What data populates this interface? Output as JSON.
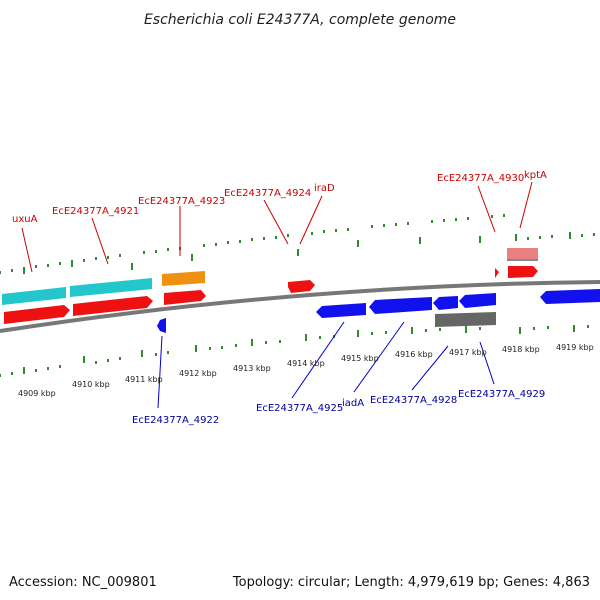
{
  "title": "Escherichia coli E24377A, complete genome",
  "footer": {
    "accession": "Accession: NC_009801",
    "summary": "Topology: circular; Length: 4,979,619 bp; Genes: 4,863"
  },
  "colors": {
    "forward_cds": "#ee1111",
    "reverse_cds": "#1111ee",
    "cyan_feature": "#22c7cc",
    "orange_feature": "#f09010",
    "pink_feature": "#e88080",
    "gray_feature": "#666666",
    "tick": "#2e8b2e",
    "backbone": "#777777"
  },
  "scale": {
    "unit": "kbp",
    "labels": [
      "4909 kbp",
      "4910 kbp",
      "4911 kbp",
      "4912 kbp",
      "4913 kbp",
      "4914 kbp",
      "4915 kbp",
      "4916 kbp",
      "4917 kbp",
      "4918 kbp",
      "4919 kbp"
    ]
  },
  "forward_labels": [
    "uxuA",
    "EcE24377A_4921",
    "EcE24377A_4923",
    "EcE24377A_4924",
    "iraD",
    "EcE24377A_4930",
    "kptA"
  ],
  "reverse_labels": [
    "EcE24377A_4922",
    "EcE24377A_4925",
    "iadA",
    "EcE24377A_4928",
    "EcE24377A_4929"
  ]
}
